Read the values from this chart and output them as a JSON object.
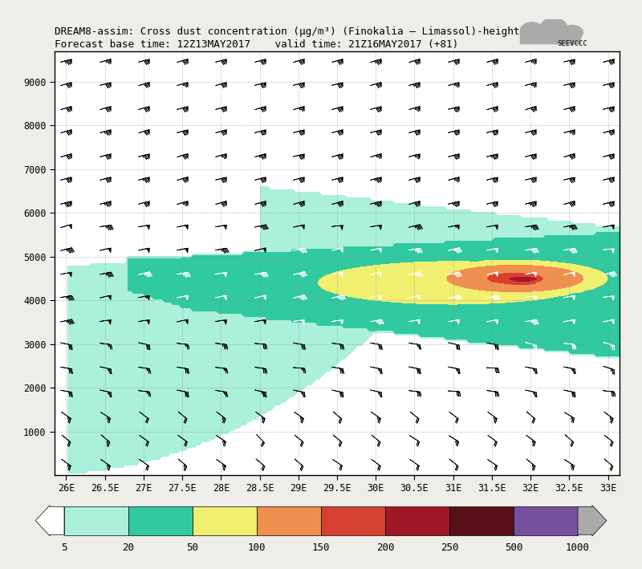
{
  "title_line1": "DREAM8-assim: Cross dust concentration (μg/m³) (Finokalia – Limassol)-height",
  "title_line2": "Forecast base time: 12Z13MAY2017    valid time: 21Z16MAY2017 (+81)",
  "xlabel_ticks": [
    "26E",
    "26.5E",
    "27E",
    "27.5E",
    "28E",
    "28.5E",
    "29E",
    "29.5E",
    "30E",
    "30.5E",
    "31E",
    "31.5E",
    "32E",
    "32.5E",
    "33E"
  ],
  "xlabel_vals": [
    26.0,
    26.5,
    27.0,
    27.5,
    28.0,
    28.5,
    29.0,
    29.5,
    30.0,
    30.5,
    31.0,
    31.5,
    32.0,
    32.5,
    33.0
  ],
  "ylabel_ticks": [
    1000,
    2000,
    3000,
    4000,
    5000,
    6000,
    7000,
    8000,
    9000
  ],
  "xlim": [
    25.85,
    33.15
  ],
  "ylim": [
    0,
    9700
  ],
  "contour_levels": [
    5,
    20,
    50,
    100,
    150,
    200,
    250,
    500,
    1000,
    9999
  ],
  "colorbar_levels": [
    5,
    20,
    50,
    100,
    150,
    200,
    250,
    500,
    1000
  ],
  "colorbar_colors": [
    "#aaf0da",
    "#30c9a0",
    "#f0ef70",
    "#f09050",
    "#d84030",
    "#a01828",
    "#581018",
    "#7850a0"
  ],
  "background_color": "#ffffff"
}
